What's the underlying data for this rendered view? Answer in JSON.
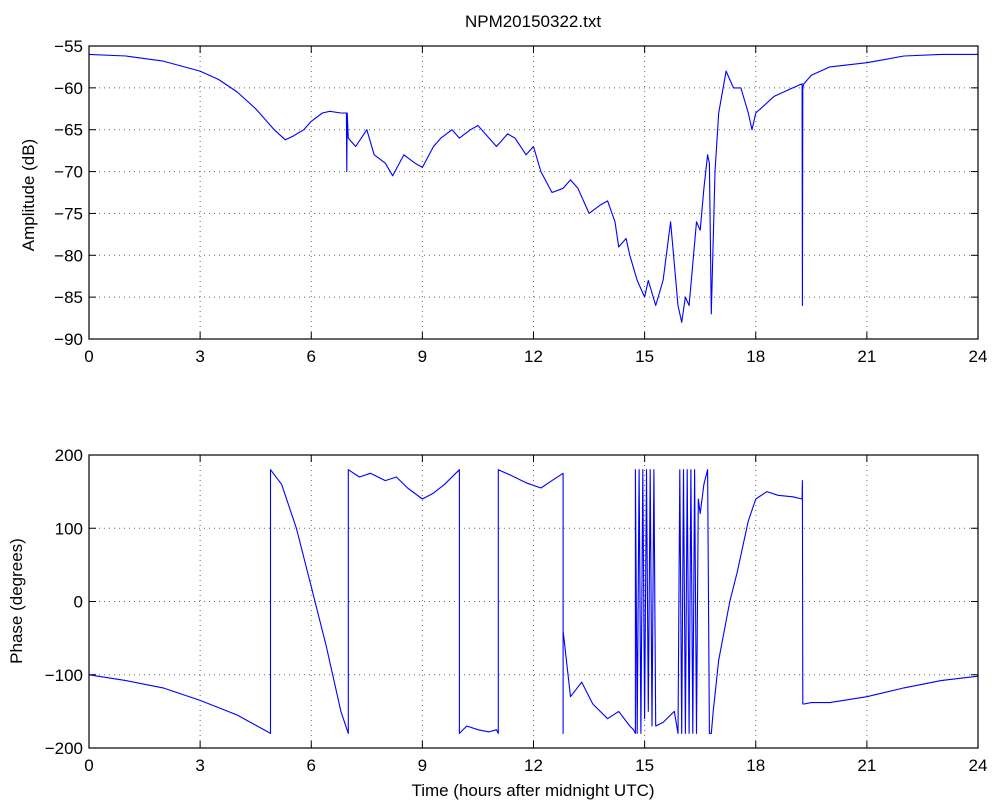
{
  "chart_data": [
    {
      "type": "line",
      "title": "NPM20150322.txt",
      "xlabel": "",
      "ylabel": "Amplitude (dB)",
      "xlim": [
        0,
        24
      ],
      "ylim": [
        -90,
        -55
      ],
      "xticks": [
        0,
        3,
        6,
        9,
        12,
        15,
        18,
        21,
        24
      ],
      "yticks": [
        -90,
        -85,
        -80,
        -75,
        -70,
        -65,
        -60,
        -55
      ],
      "grid": true,
      "color": "#0000ff",
      "series": [
        {
          "x": [
            0,
            1,
            2,
            3,
            3.5,
            4,
            4.5,
            5,
            5.3,
            5.5,
            5.8,
            6,
            6.3,
            6.5,
            6.8,
            6.95,
            6.96,
            6.97,
            7.0,
            7.2,
            7.5,
            7.7,
            8.0,
            8.2,
            8.5,
            8.8,
            9.0,
            9.3,
            9.5,
            9.8,
            10.0,
            10.3,
            10.5,
            10.8,
            11.0,
            11.3,
            11.5,
            11.8,
            12.0,
            12.2,
            12.5,
            12.8,
            13.0,
            13.2,
            13.5,
            13.8,
            14.0,
            14.2,
            14.3,
            14.5,
            14.6,
            14.8,
            15.0,
            15.1,
            15.3,
            15.5,
            15.7,
            15.8,
            15.9,
            16.0,
            16.1,
            16.2,
            16.4,
            16.5,
            16.6,
            16.7,
            16.75,
            16.8,
            16.9,
            17.0,
            17.2,
            17.4,
            17.6,
            17.8,
            17.9,
            18.0,
            18.5,
            19.0,
            19.25,
            19.26,
            19.27,
            19.28,
            19.3,
            19.5,
            20,
            21,
            22,
            23,
            24
          ],
          "y": [
            -56,
            -56.2,
            -56.8,
            -58,
            -59,
            -60.5,
            -62.5,
            -65,
            -66.2,
            -65.8,
            -65,
            -64,
            -63,
            -62.8,
            -63,
            -63,
            -70,
            -63,
            -66,
            -67,
            -65,
            -68,
            -69,
            -70.5,
            -68,
            -69,
            -69.5,
            -67,
            -66,
            -65,
            -66,
            -65,
            -64.5,
            -66,
            -67,
            -65.5,
            -66,
            -68,
            -67,
            -70,
            -72.5,
            -72,
            -71,
            -72,
            -75,
            -74,
            -73.5,
            -76,
            -79,
            -78,
            -80,
            -83,
            -85,
            -83,
            -86,
            -83,
            -76,
            -81,
            -86,
            -88,
            -85,
            -86,
            -76,
            -77,
            -72,
            -68,
            -69,
            -87,
            -70,
            -63,
            -58,
            -60,
            -60,
            -63,
            -65,
            -63,
            -61,
            -60,
            -59.5,
            -86,
            -60,
            -59.8,
            -59.5,
            -58.5,
            -57.5,
            -57,
            -56.2,
            -56,
            -56
          ]
        }
      ]
    },
    {
      "type": "line",
      "title": "",
      "xlabel": "Time (hours after midnight UTC)",
      "ylabel": "Phase (degrees)",
      "xlim": [
        0,
        24
      ],
      "ylim": [
        -200,
        200
      ],
      "xticks": [
        0,
        3,
        6,
        9,
        12,
        15,
        18,
        21,
        24
      ],
      "yticks": [
        -200,
        -100,
        0,
        100,
        200
      ],
      "grid": true,
      "color": "#0000ff",
      "series": [
        {
          "x": [
            0,
            1,
            2,
            3,
            4,
            4.9,
            4.9,
            5.2,
            5.6,
            6.0,
            6.4,
            6.8,
            7.0,
            7.0,
            7.3,
            7.6,
            8.0,
            8.3,
            8.6,
            9.0,
            9.3,
            9.6,
            9.9,
            10.0,
            10.0,
            10.2,
            10.5,
            10.8,
            11.0,
            11.05,
            11.05,
            11.4,
            11.8,
            12.2,
            12.5,
            12.8,
            12.8,
            12.8,
            12.8,
            13.0,
            13.3,
            13.6,
            14.0,
            14.3,
            14.6,
            14.7,
            14.75,
            14.75,
            14.8,
            14.85,
            14.9,
            14.95,
            15.0,
            15.05,
            15.1,
            15.15,
            15.2,
            15.25,
            15.3,
            15.5,
            15.8,
            15.9,
            15.95,
            16.0,
            16.05,
            16.1,
            16.15,
            16.2,
            16.25,
            16.3,
            16.35,
            16.4,
            16.45,
            16.5,
            16.6,
            16.7,
            16.75,
            16.8,
            16.85,
            17.0,
            17.3,
            17.5,
            17.8,
            18.0,
            18.3,
            18.6,
            19.0,
            19.25,
            19.26,
            19.27,
            19.3,
            19.5,
            20,
            21,
            22,
            23,
            24
          ],
          "y": [
            -100,
            -108,
            -118,
            -135,
            -155,
            -180,
            180,
            160,
            100,
            20,
            -60,
            -150,
            -180,
            180,
            170,
            175,
            165,
            170,
            155,
            140,
            148,
            160,
            175,
            180,
            -180,
            -170,
            -175,
            -178,
            -175,
            -180,
            180,
            172,
            162,
            155,
            165,
            175,
            -180,
            40,
            -40,
            -130,
            -110,
            -140,
            -160,
            -150,
            -170,
            -175,
            -180,
            180,
            -180,
            180,
            -180,
            180,
            -160,
            180,
            -150,
            180,
            -170,
            180,
            -170,
            -165,
            -150,
            -180,
            180,
            -180,
            180,
            -180,
            180,
            -180,
            180,
            -180,
            180,
            -180,
            140,
            120,
            160,
            180,
            -180,
            -180,
            -150,
            -80,
            0,
            40,
            110,
            140,
            150,
            145,
            143,
            140,
            165,
            -140,
            -140,
            -138,
            -138,
            -130,
            -118,
            -108,
            -102
          ]
        }
      ]
    }
  ]
}
